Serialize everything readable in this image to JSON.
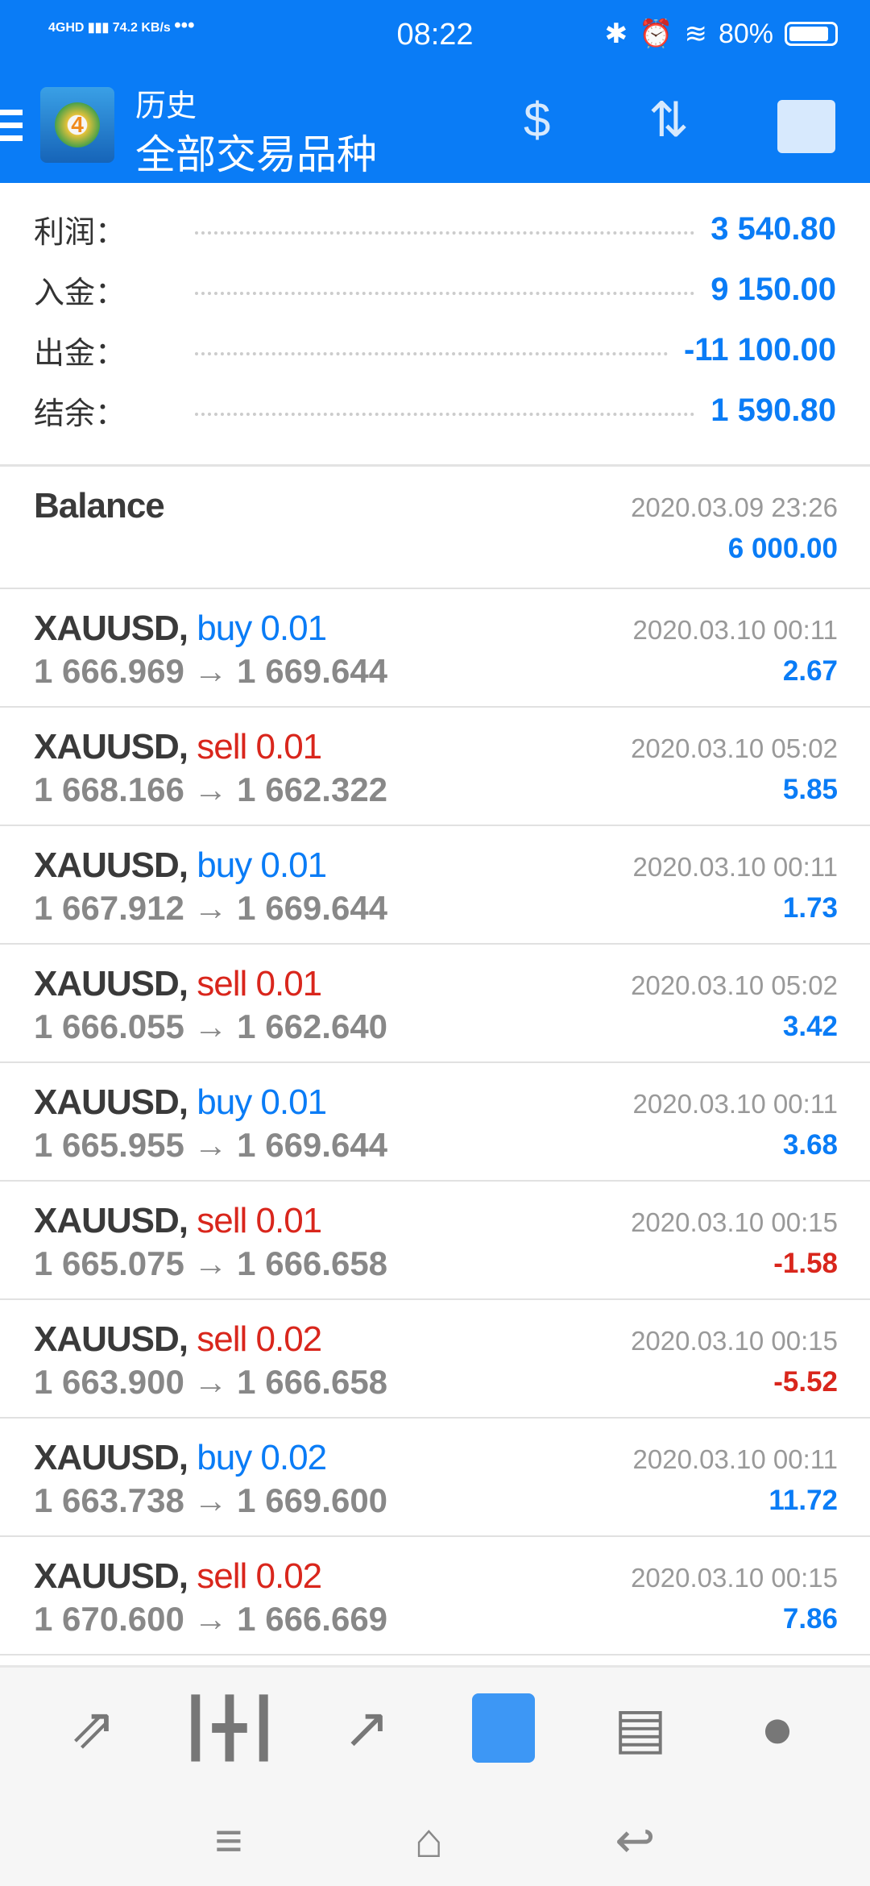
{
  "status": {
    "net": "4GHD",
    "speed": "74.2",
    "speed_unit": "KB/s",
    "dots": "•••",
    "time": "08:22",
    "battery": "80%",
    "battery_level": 0.8
  },
  "header": {
    "title": "历史",
    "subtitle": "全部交易品种",
    "icons": [
      "menu-icon",
      "mt4-logo",
      "currency-exchange-icon",
      "sort-icon",
      "calendar-contact-icon"
    ]
  },
  "summary": [
    {
      "label": "利润：",
      "value": "3 540.80"
    },
    {
      "label": "入金：",
      "value": "9 150.00"
    },
    {
      "label": "出金：",
      "value": "-11 100.00"
    },
    {
      "label": "结余：",
      "value": "1 590.80"
    }
  ],
  "balance": {
    "label": "Balance",
    "date": "2020.03.09 23:26",
    "amount": "6 000.00"
  },
  "trades": [
    {
      "symbol": "XAUUSD,",
      "side": "buy 0.01",
      "type": "buy",
      "prices": "1 666.969 → 1 669.644",
      "date": "2020.03.10 00:11",
      "profit": "2.67"
    },
    {
      "symbol": "XAUUSD,",
      "side": "sell 0.01",
      "type": "sell",
      "prices": "1 668.166 → 1 662.322",
      "date": "2020.03.10 05:02",
      "profit": "5.85"
    },
    {
      "symbol": "XAUUSD,",
      "side": "buy 0.01",
      "type": "buy",
      "prices": "1 667.912 → 1 669.644",
      "date": "2020.03.10 00:11",
      "profit": "1.73"
    },
    {
      "symbol": "XAUUSD,",
      "side": "sell 0.01",
      "type": "sell",
      "prices": "1 666.055 → 1 662.640",
      "date": "2020.03.10 05:02",
      "profit": "3.42"
    },
    {
      "symbol": "XAUUSD,",
      "side": "buy 0.01",
      "type": "buy",
      "prices": "1 665.955 → 1 669.644",
      "date": "2020.03.10 00:11",
      "profit": "3.68"
    },
    {
      "symbol": "XAUUSD,",
      "side": "sell 0.01",
      "type": "sell",
      "prices": "1 665.075 → 1 666.658",
      "date": "2020.03.10 00:15",
      "profit": "-1.58"
    },
    {
      "symbol": "XAUUSD,",
      "side": "sell 0.02",
      "type": "sell",
      "prices": "1 663.900 → 1 666.658",
      "date": "2020.03.10 00:15",
      "profit": "-5.52"
    },
    {
      "symbol": "XAUUSD,",
      "side": "buy 0.02",
      "type": "buy",
      "prices": "1 663.738 → 1 669.600",
      "date": "2020.03.10 00:11",
      "profit": "11.72"
    },
    {
      "symbol": "XAUUSD,",
      "side": "sell 0.02",
      "type": "sell",
      "prices": "1 670.600 → 1 666.669",
      "date": "2020.03.10 00:15",
      "profit": "7.86"
    }
  ],
  "bottom_nav": {
    "items": [
      "quotes-icon",
      "chart-icon",
      "trade-icon",
      "history-icon",
      "news-icon",
      "chat-icon"
    ],
    "active": "history-icon",
    "active_color": "#3d97f5"
  },
  "colors": {
    "brand": "#0a7cf6",
    "buy": "#0a7cf6",
    "sell": "#d9261c"
  }
}
